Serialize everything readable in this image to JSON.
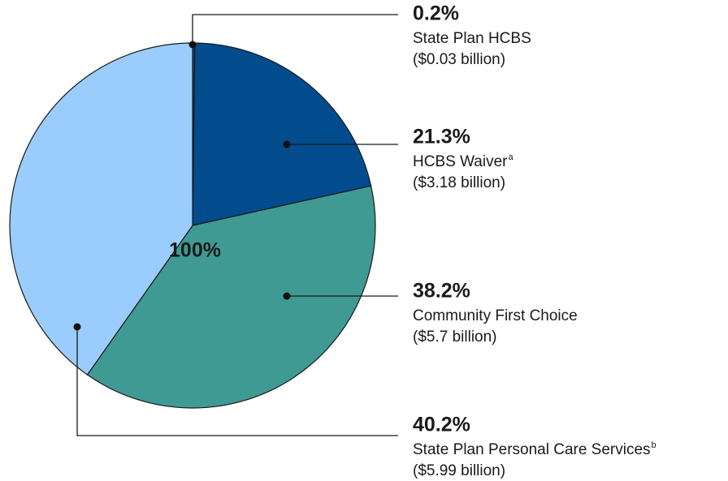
{
  "chart_data": {
    "type": "pie",
    "categories": [
      "State Plan HCBS",
      "HCBS Waiver",
      "Community First Choice",
      "State Plan Personal Care Services"
    ],
    "values": [
      0.2,
      21.3,
      38.2,
      40.2
    ],
    "value_labels": [
      "0.2%",
      "21.3%",
      "38.2%",
      "40.2%"
    ],
    "amount_labels": [
      "($0.03 billion)",
      "($3.18 billion)",
      "($5.7 billion)",
      "($5.99 billion)"
    ],
    "label_notes": {
      "1": "a",
      "3": "b"
    },
    "colors": [
      "#1d3f73",
      "#024c8e",
      "#3f9a94",
      "#9acdfd"
    ],
    "center_label": "100%"
  }
}
